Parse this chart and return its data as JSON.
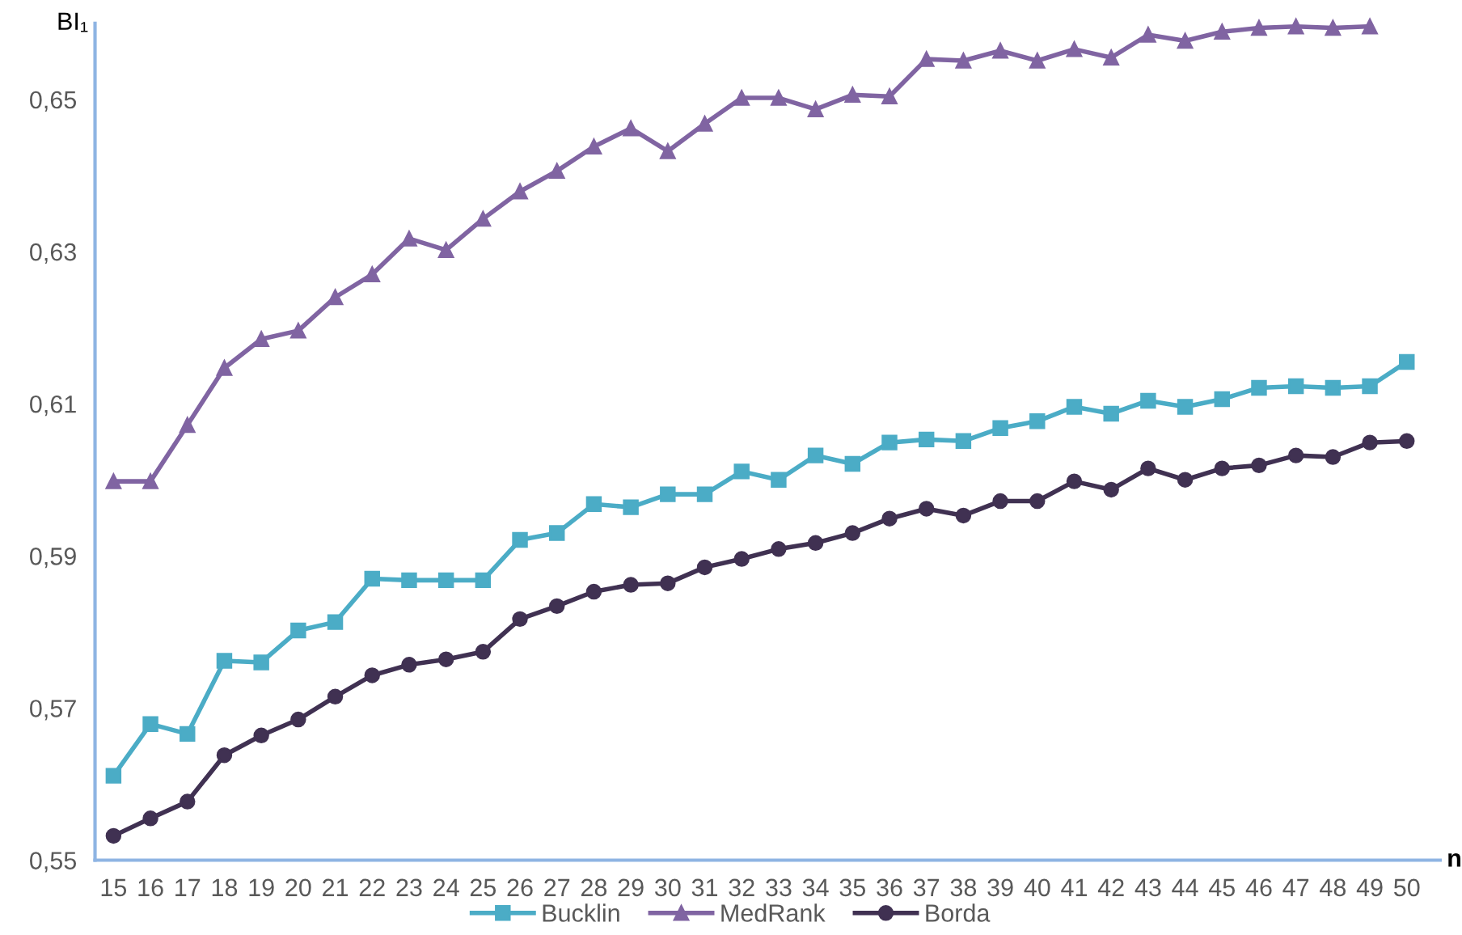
{
  "chart_data": {
    "type": "line",
    "xlabel": "n",
    "ylabel": "BI₁",
    "categories": [
      "15",
      "16",
      "17",
      "18",
      "19",
      "20",
      "21",
      "22",
      "23",
      "24",
      "25",
      "26",
      "27",
      "28",
      "29",
      "30",
      "31",
      "32",
      "33",
      "34",
      "35",
      "36",
      "37",
      "38",
      "39",
      "40",
      "41",
      "42",
      "43",
      "44",
      "45",
      "46",
      "47",
      "48",
      "49",
      "50"
    ],
    "series": [
      {
        "name": "Bucklin",
        "color": "#4bacc6",
        "marker": "square",
        "values": [
          0.5611,
          0.5679,
          0.5666,
          0.5762,
          0.576,
          0.5802,
          0.5813,
          0.587,
          0.5868,
          0.5868,
          0.5868,
          0.5921,
          0.593,
          0.5968,
          0.5964,
          0.5981,
          0.5981,
          0.6011,
          0.6,
          0.6032,
          0.6021,
          0.6049,
          0.6053,
          0.6051,
          0.6068,
          0.6077,
          0.6096,
          0.6087,
          0.6104,
          0.6096,
          0.6106,
          0.6121,
          0.6123,
          0.6121,
          0.6123,
          0.6155
        ]
      },
      {
        "name": "MedRank",
        "color": "#8064a2",
        "marker": "triangle",
        "values": [
          0.5998,
          0.5998,
          0.6072,
          0.6147,
          0.6185,
          0.6196,
          0.624,
          0.627,
          0.6317,
          0.6302,
          0.6343,
          0.6379,
          0.6406,
          0.6438,
          0.6462,
          0.6432,
          0.6468,
          0.6502,
          0.6502,
          0.6487,
          0.6506,
          0.6504,
          0.6553,
          0.6551,
          0.6564,
          0.6551,
          0.6566,
          0.6555,
          0.6585,
          0.6577,
          0.6589,
          0.6594,
          0.6596,
          0.6594,
          0.6596,
          null
        ]
      },
      {
        "name": "Borda",
        "color": "#403152",
        "marker": "circle",
        "values": [
          0.5532,
          0.5555,
          0.5577,
          0.5638,
          0.5664,
          0.5685,
          0.5715,
          0.5743,
          0.5757,
          0.5764,
          0.5774,
          0.5817,
          0.5834,
          0.5853,
          0.5862,
          0.5864,
          0.5885,
          0.5896,
          0.5909,
          0.5917,
          0.593,
          0.5949,
          0.5962,
          0.5953,
          0.5972,
          0.5972,
          0.5998,
          0.5987,
          0.6015,
          0.6,
          0.6015,
          0.6019,
          0.6032,
          0.603,
          0.6049,
          0.6051
        ]
      }
    ],
    "ylim": [
      0.55,
      0.66
    ],
    "yticks": [
      {
        "value": 0.55,
        "label": "0,55"
      },
      {
        "value": 0.57,
        "label": "0,57"
      },
      {
        "value": 0.59,
        "label": "0,59"
      },
      {
        "value": 0.61,
        "label": "0,61"
      },
      {
        "value": 0.63,
        "label": "0,63"
      },
      {
        "value": 0.65,
        "label": "0,65"
      }
    ],
    "grid": false,
    "legend": "bottom",
    "line_style": "solid"
  }
}
